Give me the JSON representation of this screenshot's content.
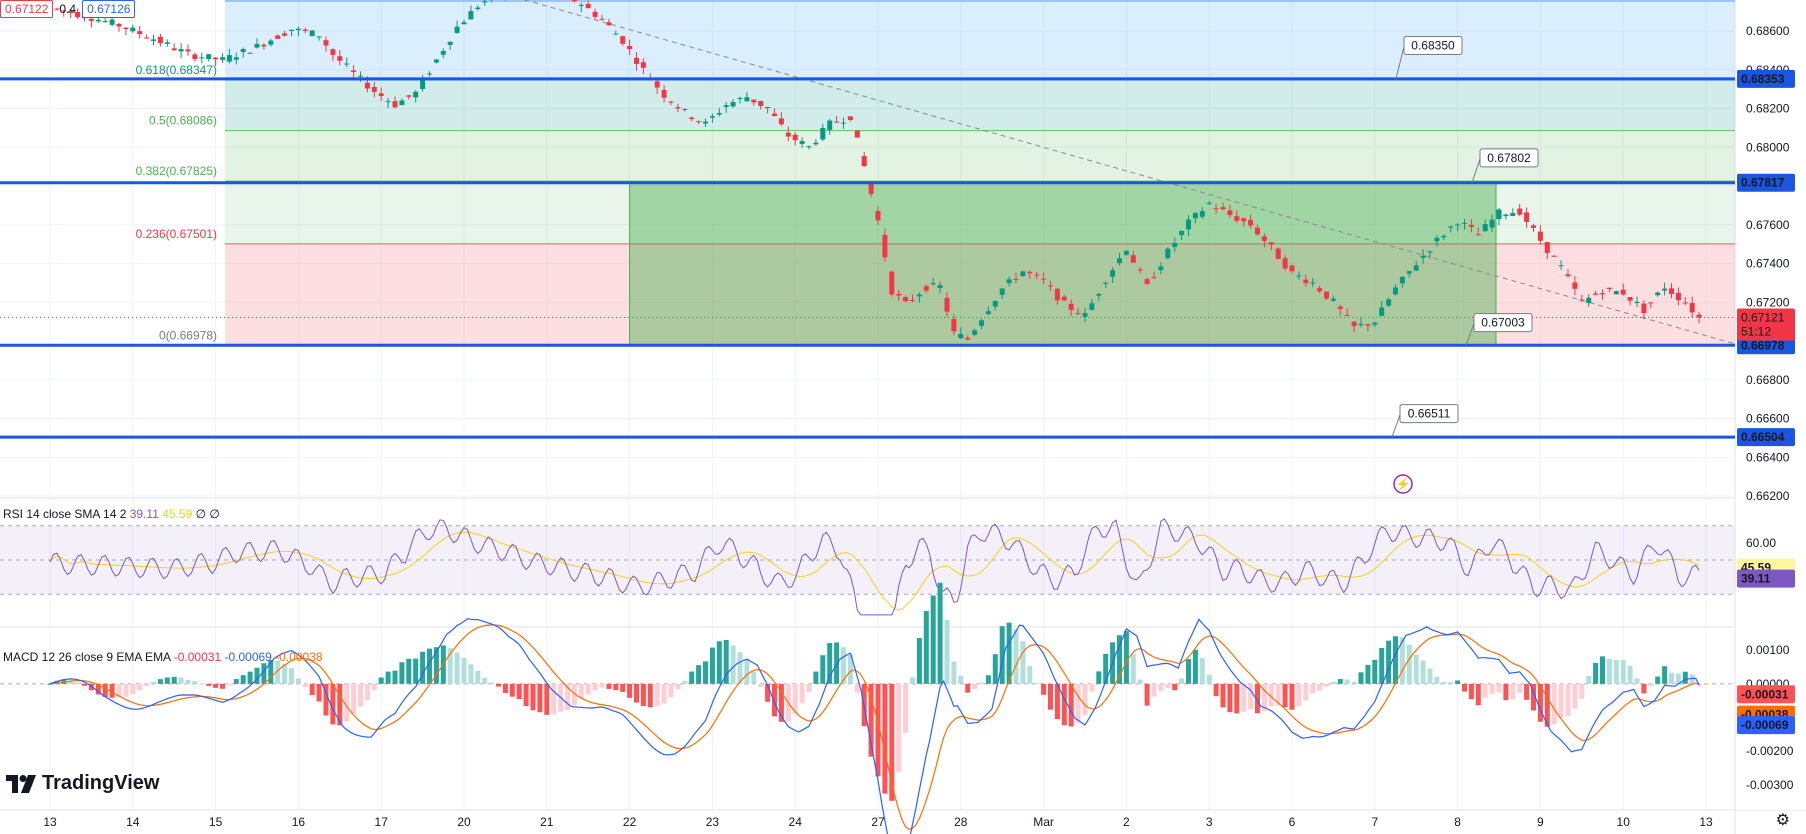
{
  "quote": {
    "bid": "0.67122",
    "spread": "0.4",
    "ask": "0.67126",
    "bid_color": "#f23645",
    "ask_color": "#2962ff"
  },
  "branding": {
    "name": "TradingView"
  },
  "colors": {
    "up": "#089981",
    "down": "#f23645",
    "level": "#1a56e0",
    "rsi": "#7e57c2",
    "rsi_ma": "#f5d11f",
    "macd": "#2962ff",
    "signal": "#ff6d00"
  },
  "chart_data": {
    "type": "candlestick",
    "price_axis": {
      "min": 0.662,
      "max": 0.6876,
      "ticks": [
        "0.68600",
        "0.68400",
        "0.68200",
        "0.68000",
        "0.67800",
        "0.67600",
        "0.67400",
        "0.67200",
        "0.66800",
        "0.66600",
        "0.66400",
        "0.66200"
      ]
    },
    "x_labels": [
      {
        "label": "13",
        "bar": 0
      },
      {
        "label": "14",
        "bar": 24
      },
      {
        "label": "15",
        "bar": 48
      },
      {
        "label": "16",
        "bar": 72
      },
      {
        "label": "17",
        "bar": 96
      },
      {
        "label": "20",
        "bar": 120
      },
      {
        "label": "21",
        "bar": 144
      },
      {
        "label": "22",
        "bar": 168
      },
      {
        "label": "23",
        "bar": 192
      },
      {
        "label": "24",
        "bar": 216
      },
      {
        "label": "27",
        "bar": 240
      },
      {
        "label": "28",
        "bar": 264
      },
      {
        "label": "Mar",
        "bar": 288
      },
      {
        "label": "2",
        "bar": 312
      },
      {
        "label": "3",
        "bar": 336
      },
      {
        "label": "6",
        "bar": 360
      },
      {
        "label": "7",
        "bar": 384
      },
      {
        "label": "8",
        "bar": 408
      },
      {
        "label": "9",
        "bar": 432
      },
      {
        "label": "10",
        "bar": 456
      },
      {
        "label": "13",
        "bar": 480
      }
    ],
    "fib_levels": [
      {
        "label": "0.618(0.68347)",
        "value": 0.68347,
        "color": "#089981"
      },
      {
        "label": "0.5(0.68086)",
        "value": 0.68086,
        "color": "#4caf50"
      },
      {
        "label": "0.382(0.67825)",
        "value": 0.67825,
        "color": "#4caf50"
      },
      {
        "label": "0.236(0.67501)",
        "value": 0.67501,
        "color": "#f23645"
      },
      {
        "label": "0(0.66978)",
        "value": 0.66978,
        "color": "#787b86"
      }
    ],
    "levels": [
      {
        "value": 0.68353,
        "label": "0.68353"
      },
      {
        "value": 0.67817,
        "label": "0.67817"
      },
      {
        "value": 0.66978,
        "label": "0.66978"
      },
      {
        "value": 0.66504,
        "label": "0.66504"
      }
    ],
    "callouts": [
      "0.68350",
      "0.67802",
      "0.67003",
      "0.66511"
    ],
    "current": {
      "price": "0.67121",
      "countdown": "51:12"
    },
    "anchors": [
      [
        0,
        0.6872
      ],
      [
        10,
        0.6868
      ],
      [
        20,
        0.6863
      ],
      [
        30,
        0.6856
      ],
      [
        40,
        0.6848
      ],
      [
        50,
        0.6845
      ],
      [
        60,
        0.6852
      ],
      [
        70,
        0.6861
      ],
      [
        78,
        0.6858
      ],
      [
        82,
        0.6848
      ],
      [
        88,
        0.6838
      ],
      [
        94,
        0.6829
      ],
      [
        100,
        0.6822
      ],
      [
        106,
        0.6828
      ],
      [
        112,
        0.6845
      ],
      [
        118,
        0.6862
      ],
      [
        124,
        0.6873
      ],
      [
        130,
        0.688
      ],
      [
        136,
        0.6884
      ],
      [
        142,
        0.6883
      ],
      [
        148,
        0.688
      ],
      [
        154,
        0.6874
      ],
      [
        160,
        0.6866
      ],
      [
        166,
        0.6855
      ],
      [
        172,
        0.684
      ],
      [
        178,
        0.6827
      ],
      [
        184,
        0.6818
      ],
      [
        190,
        0.6812
      ],
      [
        196,
        0.6822
      ],
      [
        202,
        0.6826
      ],
      [
        208,
        0.682
      ],
      [
        214,
        0.6806
      ],
      [
        220,
        0.68
      ],
      [
        226,
        0.6812
      ],
      [
        232,
        0.6816
      ],
      [
        236,
        0.679
      ],
      [
        240,
        0.6762
      ],
      [
        244,
        0.6726
      ],
      [
        248,
        0.6719
      ],
      [
        254,
        0.6728
      ],
      [
        258,
        0.6728
      ],
      [
        262,
        0.6704
      ],
      [
        266,
        0.6701
      ],
      [
        270,
        0.6712
      ],
      [
        276,
        0.6727
      ],
      [
        282,
        0.6736
      ],
      [
        288,
        0.6731
      ],
      [
        294,
        0.6719
      ],
      [
        300,
        0.6713
      ],
      [
        306,
        0.6732
      ],
      [
        312,
        0.6748
      ],
      [
        318,
        0.6728
      ],
      [
        324,
        0.6746
      ],
      [
        330,
        0.6761
      ],
      [
        336,
        0.6771
      ],
      [
        342,
        0.6765
      ],
      [
        348,
        0.676
      ],
      [
        354,
        0.6748
      ],
      [
        360,
        0.6735
      ],
      [
        366,
        0.673
      ],
      [
        372,
        0.672
      ],
      [
        378,
        0.6707
      ],
      [
        384,
        0.671
      ],
      [
        390,
        0.6727
      ],
      [
        396,
        0.674
      ],
      [
        402,
        0.6752
      ],
      [
        408,
        0.6762
      ],
      [
        414,
        0.6755
      ],
      [
        420,
        0.6766
      ],
      [
        426,
        0.6767
      ],
      [
        432,
        0.6752
      ],
      [
        438,
        0.6738
      ],
      [
        444,
        0.672
      ],
      [
        450,
        0.6726
      ],
      [
        456,
        0.6725
      ],
      [
        462,
        0.6716
      ],
      [
        468,
        0.6728
      ],
      [
        474,
        0.672
      ],
      [
        478,
        0.6712
      ]
    ],
    "rsi": {
      "label": "RSI 14 close SMA 14 2",
      "rsi_value": "39.11",
      "sma_value": "45.59",
      "extra": "∅ ∅",
      "ticks": [
        "60.00"
      ]
    },
    "macd": {
      "label": "MACD 12 26 close 9 EMA EMA",
      "hist_value": "-0.00031",
      "macd_value": "-0.00069",
      "signal_value": "-0.00038",
      "ticks": [
        "0.00100",
        "0.00000",
        "-0.00200",
        "-0.00300"
      ]
    }
  }
}
